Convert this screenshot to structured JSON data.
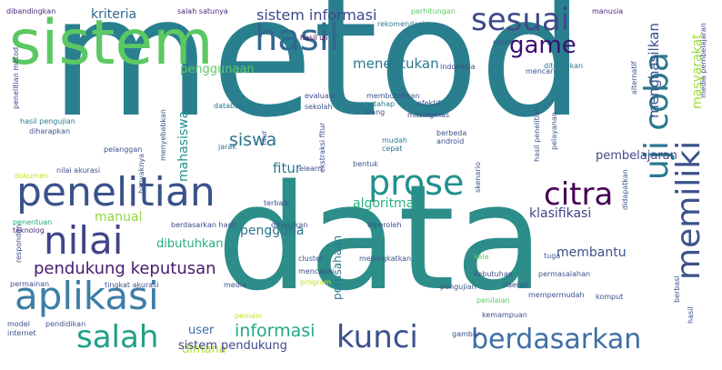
{
  "words": [
    {
      "text": "metod",
      "color": "#2a7f8e"
    },
    {
      "text": "data",
      "color": "#2c8d89"
    },
    {
      "text": "sistem",
      "color": "#5cc863"
    },
    {
      "text": "penelitian",
      "color": "#3b528b"
    },
    {
      "text": "aplikasi",
      "color": "#3e7ea7"
    },
    {
      "text": "nilai",
      "color": "#414487"
    },
    {
      "text": "hasil",
      "color": "#31688e"
    },
    {
      "text": "sesuai",
      "color": "#3e4989"
    },
    {
      "text": "prose",
      "color": "#21918c"
    },
    {
      "text": "citra",
      "color": "#440154"
    },
    {
      "text": "kunci",
      "color": "#3b528b"
    },
    {
      "text": "berdasarkan",
      "color": "#3e6ea6"
    },
    {
      "text": "salah",
      "color": "#1fa187"
    },
    {
      "text": "game",
      "color": "#3b0f70"
    },
    {
      "text": "uji coba",
      "color": "#2a788e"
    },
    {
      "text": "memiliki",
      "color": "#3b528b"
    },
    {
      "text": "pendukung keputusan",
      "color": "#481a6c"
    },
    {
      "text": "informasi",
      "color": "#22a884"
    },
    {
      "text": "sistem informasi",
      "color": "#3e4989"
    },
    {
      "text": "kriteria",
      "color": "#31688e"
    },
    {
      "text": "menentukan",
      "color": "#2a788e"
    },
    {
      "text": "menghasilkan",
      "color": "#3b528b"
    },
    {
      "text": "masyarakat",
      "color": "#9bd93c"
    },
    {
      "text": "pembelajaran",
      "color": "#3e4989"
    },
    {
      "text": "siswa",
      "color": "#2c728e"
    },
    {
      "text": "fitur",
      "color": "#2a788e"
    },
    {
      "text": "mahasiswa",
      "color": "#21918c"
    },
    {
      "text": "penggunaan",
      "color": "#5ec962"
    },
    {
      "text": "algoritma",
      "color": "#29af7f"
    },
    {
      "text": "klasifikasi",
      "color": "#414487"
    },
    {
      "text": "manual",
      "color": "#90d743"
    },
    {
      "text": "pengguna",
      "color": "#2c728e"
    },
    {
      "text": "dibutuhkan",
      "color": "#27ad81"
    },
    {
      "text": "membantu",
      "color": "#3b528b"
    },
    {
      "text": "perusahaan",
      "color": "#2a788e"
    },
    {
      "text": "user",
      "color": "#3e6ea6"
    },
    {
      "text": "dimana",
      "color": "#b5de2b"
    },
    {
      "text": "sistem pendukung",
      "color": "#3e4989"
    },
    {
      "text": "dibandingkan",
      "color": "#482878"
    },
    {
      "text": "salah satunya",
      "color": "#482878"
    },
    {
      "text": "perhitungan",
      "color": "#5ec962"
    },
    {
      "text": "manusia",
      "color": "#482878"
    },
    {
      "text": "rekomendasi",
      "color": "#2a788e"
    },
    {
      "text": "hasil uji",
      "color": "#440154"
    },
    {
      "text": "objek",
      "color": "#3b528b"
    },
    {
      "text": "diterapkan",
      "color": "#2a788e"
    },
    {
      "text": "mencari",
      "color": "#3b528b"
    },
    {
      "text": "indonesia",
      "color": "#3e4989"
    },
    {
      "text": "efektif",
      "color": "#3b528b"
    },
    {
      "text": "alternatif",
      "color": "#3b528b"
    },
    {
      "text": "media pembelajaran",
      "color": "#3e4989"
    },
    {
      "text": "penelitian metod",
      "color": "#3e4989"
    },
    {
      "text": "hasil pengujian",
      "color": "#2a788e"
    },
    {
      "text": "diharapkan",
      "color": "#3b528b"
    },
    {
      "text": "evaluasi",
      "color": "#3e4989"
    },
    {
      "text": "membutuhkan",
      "color": "#3b528b"
    },
    {
      "text": "tahap",
      "color": "#2a788e"
    },
    {
      "text": "sekolah",
      "color": "#3b528b"
    },
    {
      "text": "orang",
      "color": "#3b528b"
    },
    {
      "text": "databas",
      "color": "#2c728e"
    },
    {
      "text": "masingmas",
      "color": "#3e4989"
    },
    {
      "text": "pelanggan",
      "color": "#3b528b"
    },
    {
      "text": "menyebabkan",
      "color": "#3b528b"
    },
    {
      "text": "jarak",
      "color": "#2a788e"
    },
    {
      "text": "fitur",
      "color": "#3b528b"
    },
    {
      "text": "ekstraksi fitur",
      "color": "#3e4989"
    },
    {
      "text": "mudah",
      "color": "#2a788e"
    },
    {
      "text": "cepat",
      "color": "#2a788e"
    },
    {
      "text": "berbeda",
      "color": "#3b528b"
    },
    {
      "text": "android",
      "color": "#3b528b"
    },
    {
      "text": "pelayanan",
      "color": "#3b528b"
    },
    {
      "text": "hasil penelitian",
      "color": "#3b528b"
    },
    {
      "text": "bentuk",
      "color": "#3b528b"
    },
    {
      "text": "dokumen",
      "color": "#c8e020"
    },
    {
      "text": "nilai akurasi",
      "color": "#3b528b"
    },
    {
      "text": "banyaknya",
      "color": "#3b528b"
    },
    {
      "text": "elearn",
      "color": "#3e4989"
    },
    {
      "text": "skenario",
      "color": "#3b528b"
    },
    {
      "text": "terbaik",
      "color": "#3b528b"
    },
    {
      "text": "didapatkan",
      "color": "#3b528b"
    },
    {
      "text": "penentuan",
      "color": "#22a884"
    },
    {
      "text": "teknolog",
      "color": "#482878"
    },
    {
      "text": "berdasarkan hasil",
      "color": "#3e4989"
    },
    {
      "text": "dihasilkan",
      "color": "#3b528b"
    },
    {
      "text": "diperoleh",
      "color": "#3b528b"
    },
    {
      "text": "responden",
      "color": "#3e4989"
    },
    {
      "text": "cluster",
      "color": "#3b528b"
    },
    {
      "text": "meningkatkan",
      "color": "#3b528b"
    },
    {
      "text": "kela",
      "color": "#5ec962"
    },
    {
      "text": "tuga",
      "color": "#3b528b"
    },
    {
      "text": "kebutuhan",
      "color": "#3b528b"
    },
    {
      "text": "permasalahan",
      "color": "#3b528b"
    },
    {
      "text": "permainan",
      "color": "#3b528b"
    },
    {
      "text": "tingkat akurasi",
      "color": "#3b528b"
    },
    {
      "text": "mencapai",
      "color": "#3e4989"
    },
    {
      "text": "media",
      "color": "#3b528b"
    },
    {
      "text": "program",
      "color": "#c8e020"
    },
    {
      "text": "pengujian",
      "color": "#3b528b"
    },
    {
      "text": "daerah",
      "color": "#3b528b"
    },
    {
      "text": "mempermudah",
      "color": "#3b528b"
    },
    {
      "text": "komput",
      "color": "#3b528b"
    },
    {
      "text": "berbasi",
      "color": "#3b528b"
    },
    {
      "text": "penilaian",
      "color": "#5ec962"
    },
    {
      "text": "kemampuan",
      "color": "#3b528b"
    },
    {
      "text": "pemain",
      "color": "#c8e020"
    },
    {
      "text": "model",
      "color": "#3b528b"
    },
    {
      "text": "pendidikan",
      "color": "#3b528b"
    },
    {
      "text": "internet",
      "color": "#3b528b"
    },
    {
      "text": "gambar",
      "color": "#3b528b"
    },
    {
      "text": "hasil",
      "color": "#3b528b"
    }
  ]
}
